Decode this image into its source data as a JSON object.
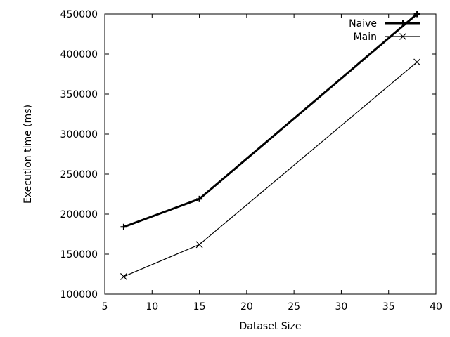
{
  "chart_data": {
    "type": "line",
    "title": "",
    "xlabel": "Dataset Size",
    "ylabel": "Execution time (ms)",
    "xlim": [
      5,
      40
    ],
    "ylim": [
      100000,
      450000
    ],
    "xticks": [
      5,
      10,
      15,
      20,
      25,
      30,
      35,
      40
    ],
    "yticks": [
      100000,
      150000,
      200000,
      250000,
      300000,
      350000,
      400000,
      450000
    ],
    "grid": false,
    "legend_position": "top-right",
    "series": [
      {
        "name": "Naive",
        "marker": "plus",
        "line": "thick",
        "x": [
          7,
          15,
          38
        ],
        "y": [
          184000,
          219000,
          450000
        ]
      },
      {
        "name": "Main",
        "marker": "cross",
        "line": "thin",
        "x": [
          7,
          15,
          38
        ],
        "y": [
          122000,
          162000,
          390000
        ]
      }
    ]
  }
}
